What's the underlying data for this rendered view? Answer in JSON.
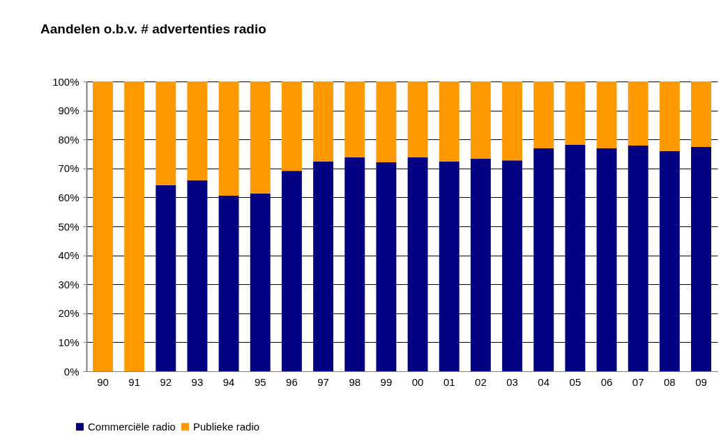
{
  "chart_data": {
    "type": "bar",
    "title": "Aandelen o.b.v. # advertenties radio",
    "stacked": true,
    "categories": [
      "90",
      "91",
      "92",
      "93",
      "94",
      "95",
      "96",
      "97",
      "98",
      "99",
      "00",
      "01",
      "02",
      "03",
      "04",
      "05",
      "06",
      "07",
      "08",
      "09"
    ],
    "series": [
      {
        "name": "Commerciële radio",
        "color": "#000080",
        "values": [
          0,
          0,
          64.2,
          65.9,
          60.6,
          61.3,
          69.2,
          72.4,
          73.8,
          72.1,
          73.8,
          72.4,
          73.3,
          72.8,
          76.9,
          78.1,
          76.9,
          77.9,
          76.0,
          77.4
        ]
      },
      {
        "name": "Publieke radio",
        "color": "#ff9900",
        "values": [
          100,
          100,
          35.8,
          34.1,
          39.4,
          38.7,
          30.8,
          27.6,
          26.2,
          27.9,
          26.2,
          27.6,
          26.7,
          27.2,
          23.1,
          21.9,
          23.1,
          22.1,
          24.0,
          22.6
        ]
      }
    ],
    "ylim": [
      0,
      100
    ],
    "yticks": [
      {
        "value": 0,
        "label": "0%"
      },
      {
        "value": 10,
        "label": "10%"
      },
      {
        "value": 20,
        "label": "20%"
      },
      {
        "value": 30,
        "label": "30%"
      },
      {
        "value": 40,
        "label": "40%"
      },
      {
        "value": 50,
        "label": "50%"
      },
      {
        "value": 60,
        "label": "60%"
      },
      {
        "value": 70,
        "label": "70%"
      },
      {
        "value": 80,
        "label": "80%"
      },
      {
        "value": 90,
        "label": "90%"
      },
      {
        "value": 100,
        "label": "100%"
      }
    ],
    "grid": "y",
    "legend": "bottom left"
  }
}
